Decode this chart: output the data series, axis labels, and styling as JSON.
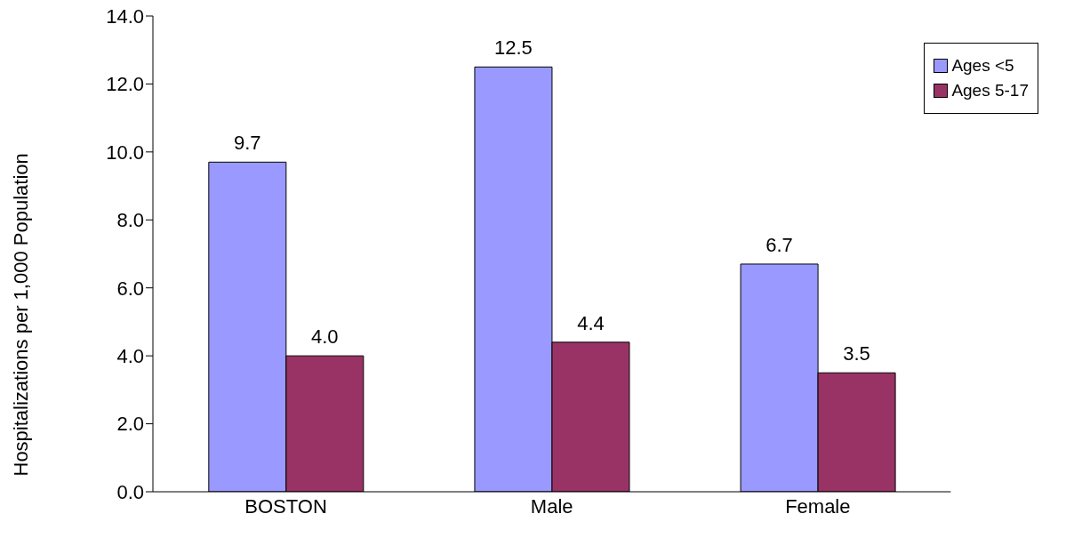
{
  "chart_data": {
    "type": "bar",
    "ylabel": "Hospitalizations per 1,000 Population",
    "categories": [
      "BOSTON",
      "Male",
      "Female"
    ],
    "series": [
      {
        "name": "Ages <5",
        "color": "#9999ff",
        "values": [
          9.7,
          12.5,
          6.7
        ],
        "value_labels": [
          "9.7",
          "12.5",
          "6.7"
        ]
      },
      {
        "name": "Ages 5-17",
        "color": "#993366",
        "values": [
          4.0,
          4.4,
          3.5
        ],
        "value_labels": [
          "4.0",
          "4.4",
          "3.5"
        ]
      }
    ],
    "ylim": [
      0,
      14
    ],
    "yticks": [
      {
        "value": 0,
        "label": "0.0"
      },
      {
        "value": 2,
        "label": "2.0"
      },
      {
        "value": 4,
        "label": "4.0"
      },
      {
        "value": 6,
        "label": "6.0"
      },
      {
        "value": 8,
        "label": "8.0"
      },
      {
        "value": 10,
        "label": "10.0"
      },
      {
        "value": 12,
        "label": "12.0"
      },
      {
        "value": 14,
        "label": "14.0"
      }
    ],
    "grid": false,
    "legend": "top right"
  }
}
